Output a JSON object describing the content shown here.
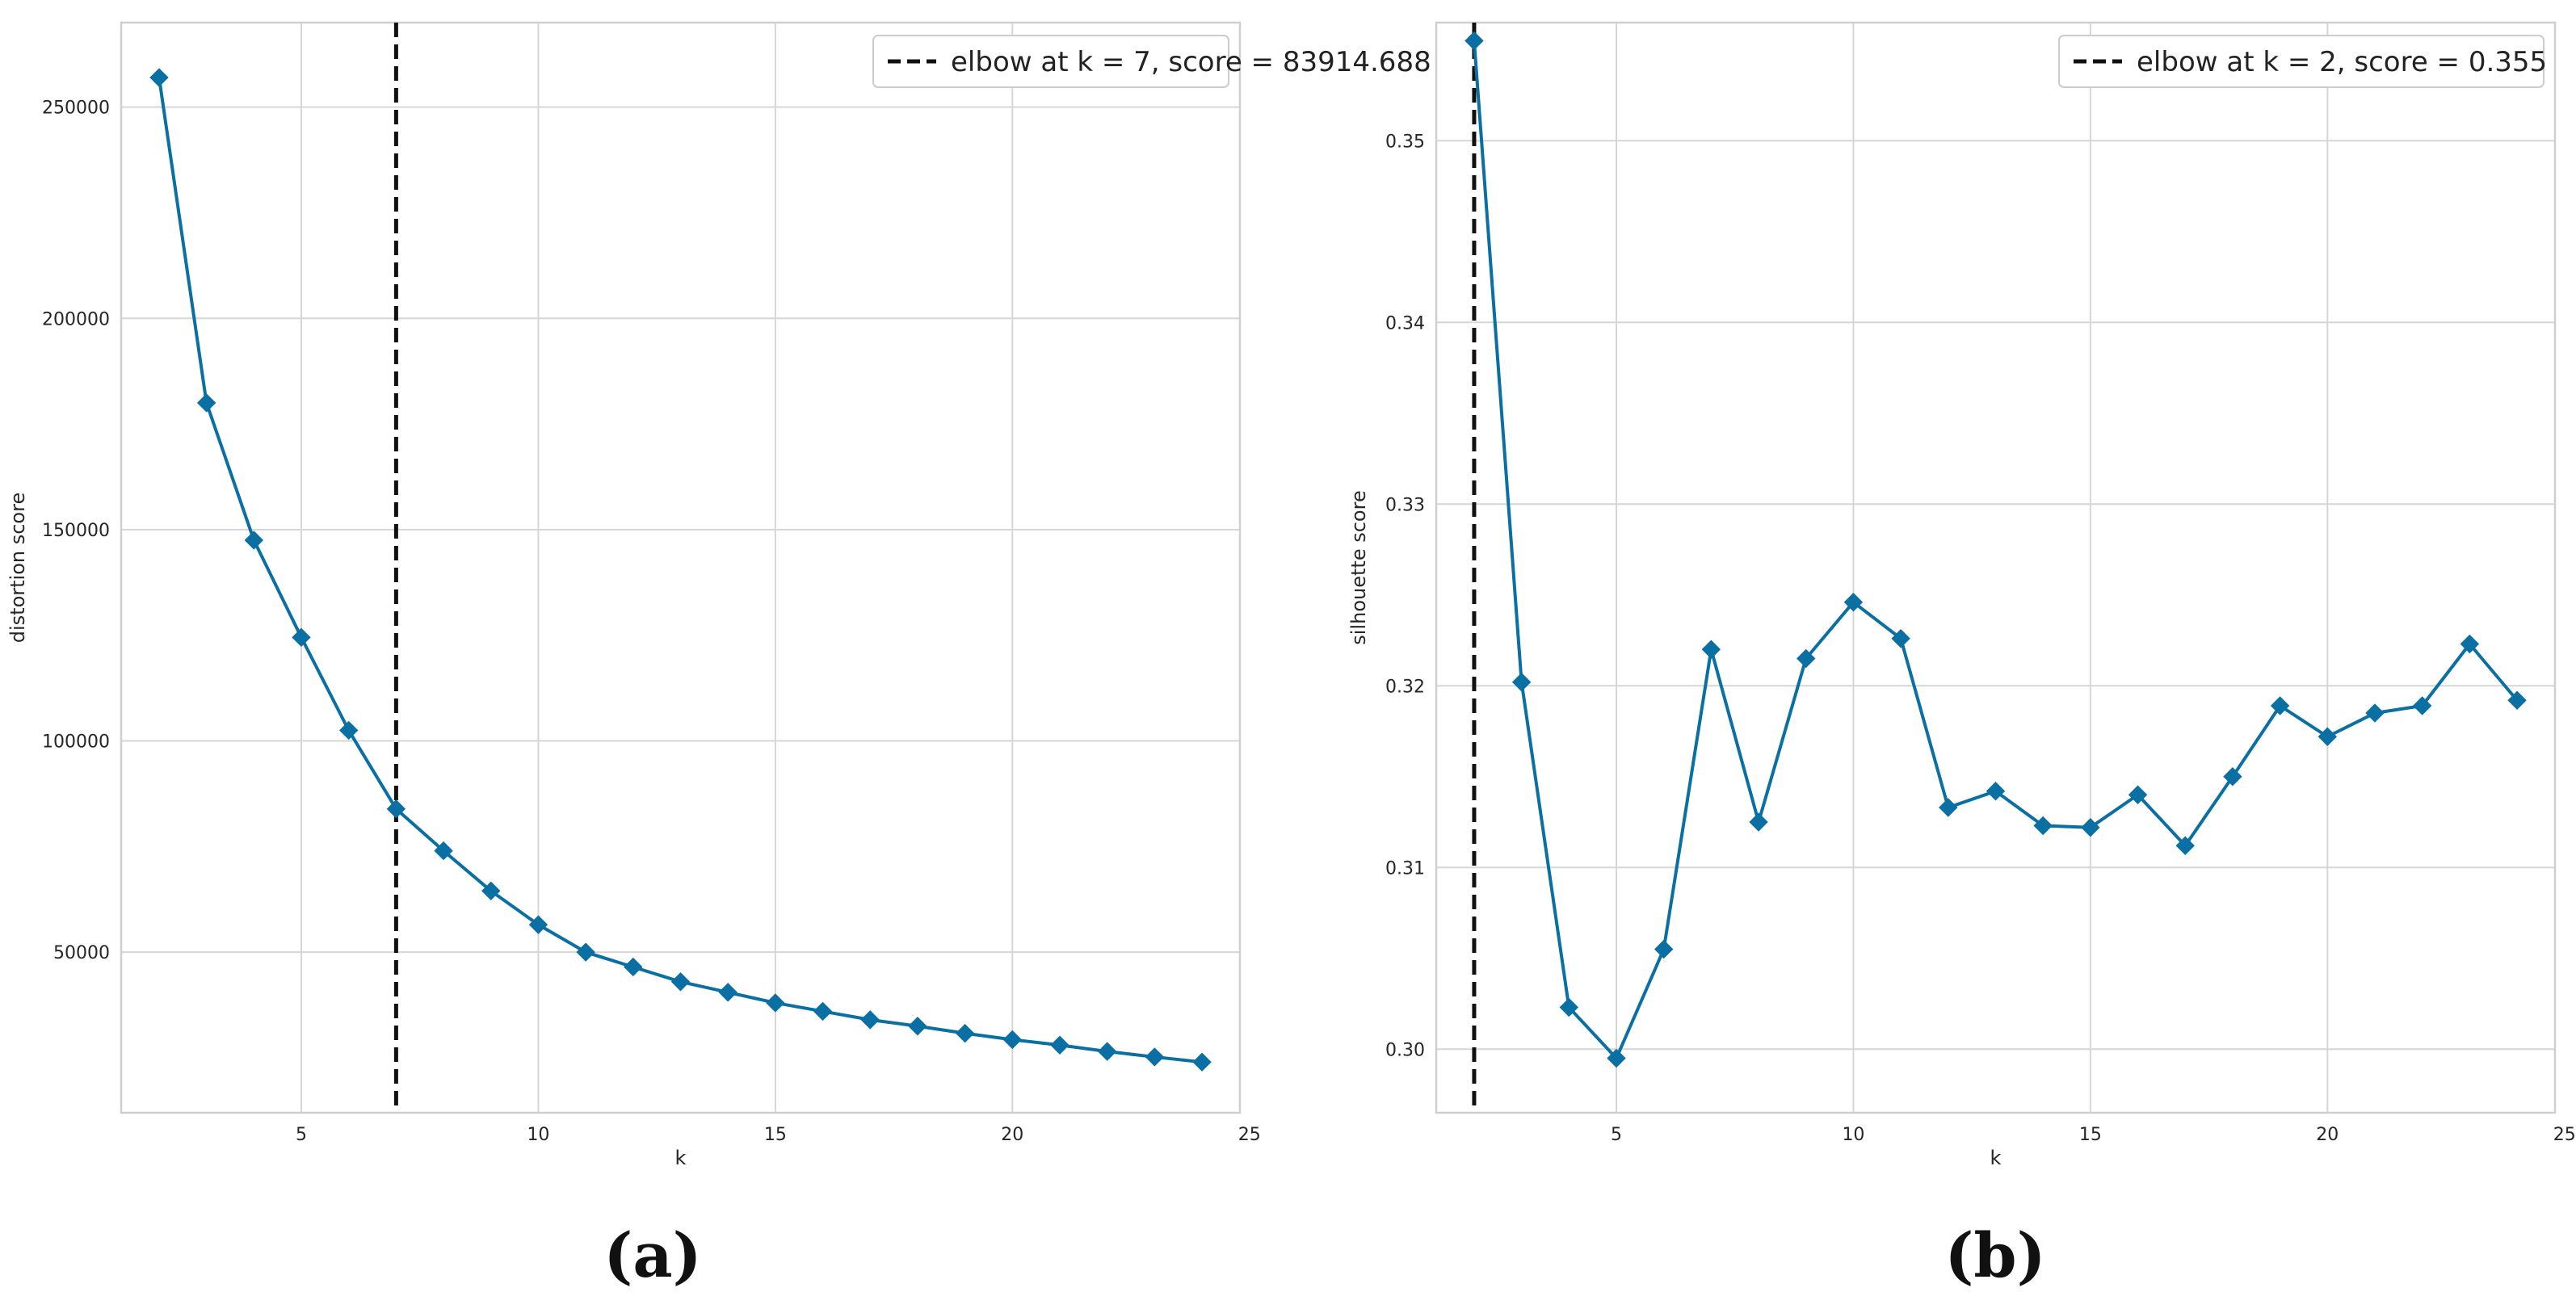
{
  "chart_data": [
    {
      "type": "line",
      "xlabel": "k",
      "ylabel": "distortion score",
      "xlim": [
        1.2,
        24.8
      ],
      "ylim": [
        12000,
        270000
      ],
      "xticks": [
        5,
        10,
        15,
        20,
        25
      ],
      "yticks": [
        50000,
        100000,
        150000,
        200000,
        250000
      ],
      "grid": true,
      "legend_position": "top-right",
      "legend_label": "elbow at k = 7, score = 83914.688",
      "elbow_x": 7,
      "series_color": "#0a6fa3",
      "x": [
        2,
        3,
        4,
        5,
        6,
        7,
        8,
        9,
        10,
        11,
        12,
        13,
        14,
        15,
        16,
        17,
        18,
        19,
        20,
        21,
        22,
        23,
        24
      ],
      "values": [
        257000,
        180000,
        147500,
        124500,
        102500,
        83914.688,
        74000,
        64500,
        56500,
        50000,
        46500,
        43000,
        40500,
        38000,
        36000,
        34000,
        32500,
        30800,
        29300,
        28000,
        26500,
        25200,
        24000
      ]
    },
    {
      "type": "line",
      "xlabel": "k",
      "ylabel": "silhouette score",
      "xlim": [
        1.2,
        24.8
      ],
      "ylim": [
        0.2965,
        0.3565
      ],
      "xticks": [
        5,
        10,
        15,
        20,
        25
      ],
      "yticks": [
        0.3,
        0.31,
        0.32,
        0.33,
        0.34,
        0.35
      ],
      "ytick_labels": [
        "0.30",
        "0.31",
        "0.32",
        "0.33",
        "0.34",
        "0.35"
      ],
      "grid": true,
      "legend_position": "top-right",
      "legend_label": "elbow at k = 2, score = 0.355",
      "elbow_x": 2,
      "series_color": "#0a6fa3",
      "x": [
        2,
        3,
        4,
        5,
        6,
        7,
        8,
        9,
        10,
        11,
        12,
        13,
        14,
        15,
        16,
        17,
        18,
        19,
        20,
        21,
        22,
        23,
        24
      ],
      "values": [
        0.3555,
        0.3202,
        0.3023,
        0.2995,
        0.3055,
        0.322,
        0.3125,
        0.3215,
        0.3246,
        0.3226,
        0.3133,
        0.3142,
        0.3123,
        0.3122,
        0.314,
        0.3112,
        0.315,
        0.3189,
        0.3172,
        0.3185,
        0.3189,
        0.3223,
        0.3192
      ]
    }
  ],
  "captions": [
    "(a)",
    "(b)"
  ]
}
